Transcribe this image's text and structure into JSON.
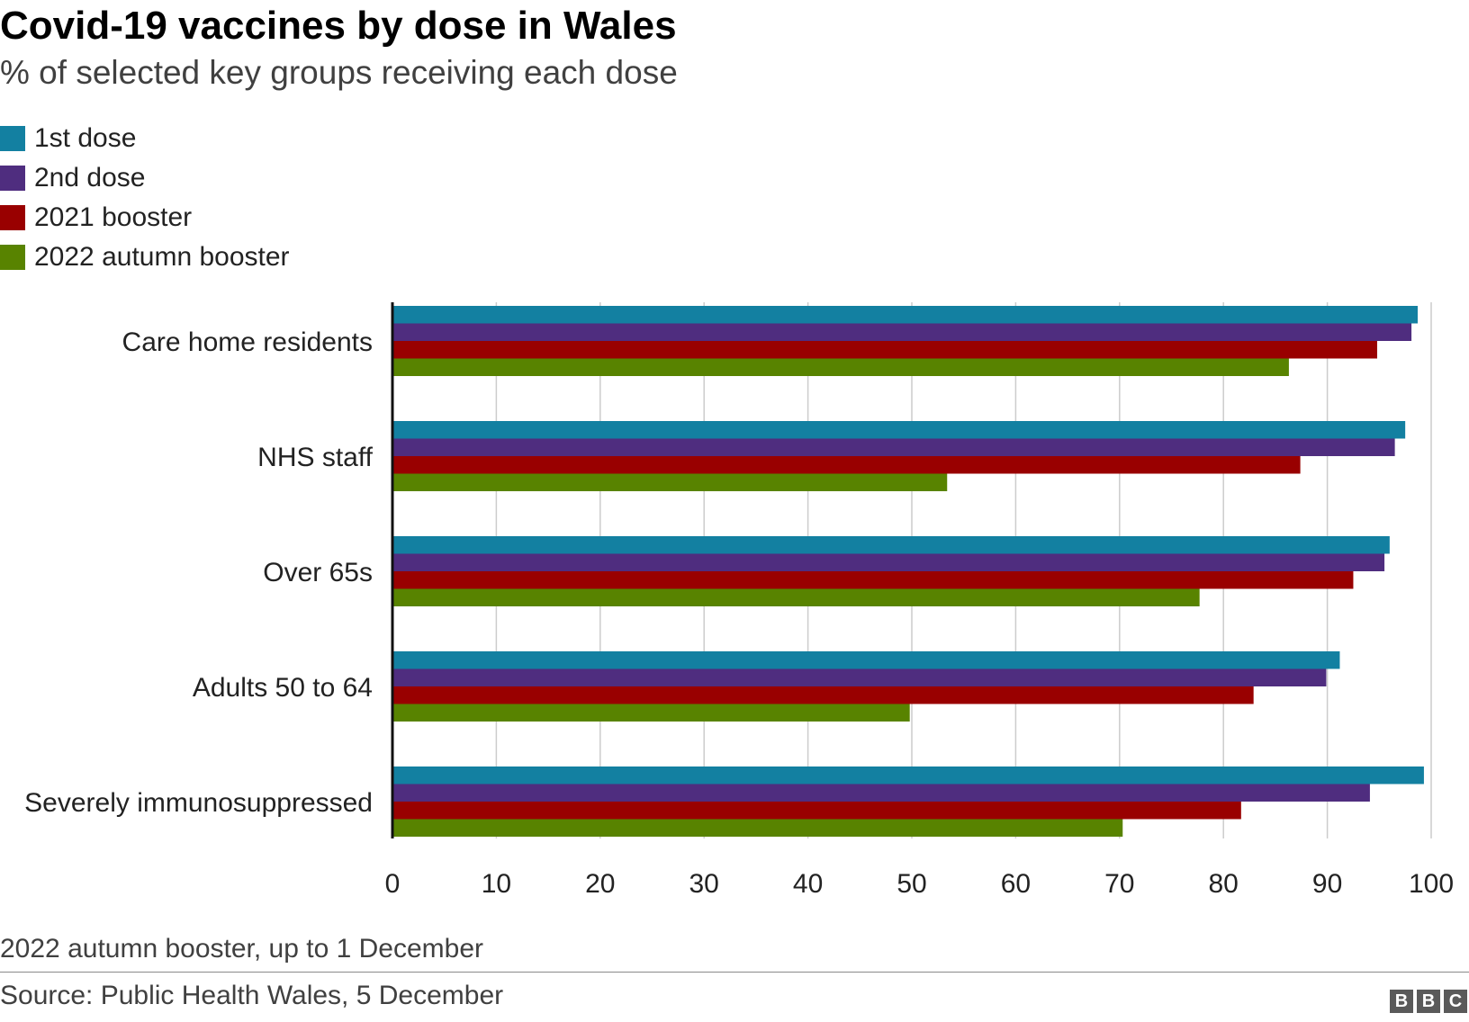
{
  "chart_data": {
    "type": "bar",
    "orientation": "horizontal",
    "title": "Covid-19 vaccines by dose in Wales",
    "subtitle": "% of selected key groups receiving each dose",
    "categories": [
      "Care home residents",
      "NHS staff",
      "Over 65s",
      "Adults 50 to 64",
      "Severely immunosuppressed"
    ],
    "series": [
      {
        "name": "1st dose",
        "color": "#1380A1",
        "values": [
          98.7,
          97.5,
          96.0,
          91.2,
          99.3
        ]
      },
      {
        "name": "2nd dose",
        "color": "#4F2D7F",
        "values": [
          98.1,
          96.5,
          95.5,
          89.9,
          94.1
        ]
      },
      {
        "name": "2021 booster",
        "color": "#990000",
        "values": [
          94.8,
          87.4,
          92.5,
          82.9,
          81.7
        ]
      },
      {
        "name": "2022 autumn booster",
        "color": "#588300",
        "values": [
          86.3,
          53.4,
          77.7,
          49.8,
          70.3
        ]
      }
    ],
    "xlim": [
      0,
      100
    ],
    "xticks": [
      "0",
      "10",
      "20",
      "30",
      "40",
      "50",
      "60",
      "70",
      "80",
      "90",
      "100"
    ],
    "grid": true,
    "legend_position": "top-left"
  },
  "footnote": "2022 autumn booster, up to 1 December",
  "source": "Source: Public Health Wales, 5 December",
  "logo_letters": [
    "B",
    "B",
    "C"
  ]
}
